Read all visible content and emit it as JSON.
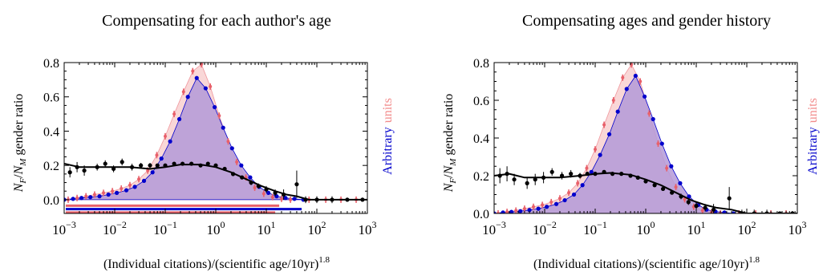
{
  "figure": {
    "panels": [
      {
        "title": "Compensating for each author's age",
        "ylabel": "N_F/N_M gender ratio",
        "ylabel_parts": {
          "N": "N",
          "F": "F",
          "slash": "/",
          "M": "M",
          "rest": " gender ratio"
        },
        "right_label": {
          "blue": "Arbitrary",
          "red": "units"
        },
        "xlabel": {
          "main": "(Individual citations)/(scientific age/10yr)",
          "exponent": "1.8"
        }
      },
      {
        "title": "Compensating ages and gender history",
        "ylabel": "N_F/N_M gender ratio",
        "ylabel_parts": {
          "N": "N",
          "F": "F",
          "slash": "/",
          "M": "M",
          "rest": " gender ratio"
        },
        "right_label": {
          "blue": "Arbitrary",
          "red": "units"
        },
        "xlabel": {
          "main": "(Individual citations)/(scientific age/10yr)",
          "exponent": "1.8"
        }
      }
    ]
  },
  "chart_data": [
    {
      "type": "scatter",
      "title": "Compensating for each author's age",
      "xlabel": "(Individual citations)/(scientific age/10yr)^1.8",
      "ylabel": "N_F/N_M gender ratio",
      "xscale": "log",
      "xlim": [
        0.001,
        1000
      ],
      "ylim": [
        -0.08,
        0.8
      ],
      "yticks": [
        0.0,
        0.2,
        0.4,
        0.6,
        0.8
      ],
      "ytick_labels": [
        "0.0",
        "0.2",
        "0.4",
        "0.6",
        "0.8"
      ],
      "xticks": [
        0.001,
        0.01,
        0.1,
        1,
        10,
        100,
        1000
      ],
      "xtick_labels": [
        {
          "b": "10",
          "e": "−3"
        },
        {
          "b": "10",
          "e": "−2"
        },
        {
          "b": "10",
          "e": "−1"
        },
        {
          "b": "10",
          "e": "0"
        },
        {
          "b": "10",
          "e": "1"
        },
        {
          "b": "10",
          "e": "2"
        },
        {
          "b": "10",
          "e": "3"
        }
      ],
      "grid": false,
      "colors": {
        "ratio": "#000000",
        "blue": "#0000cc",
        "red": "#e8606a",
        "fill": "#b49ad8",
        "red_fill": "#f7c9c9"
      },
      "ratio_points": [
        {
          "x": 0.0013,
          "y": 0.16,
          "err": 0.03
        },
        {
          "x": 0.0018,
          "y": 0.19,
          "err": 0.03
        },
        {
          "x": 0.0025,
          "y": 0.17,
          "err": 0.03
        },
        {
          "x": 0.0045,
          "y": 0.19,
          "err": 0.02
        },
        {
          "x": 0.0065,
          "y": 0.21,
          "err": 0.02
        },
        {
          "x": 0.0095,
          "y": 0.18,
          "err": 0.02
        },
        {
          "x": 0.014,
          "y": 0.22,
          "err": 0.02
        },
        {
          "x": 0.022,
          "y": 0.19,
          "err": 0.02
        },
        {
          "x": 0.033,
          "y": 0.2,
          "err": 0.015
        },
        {
          "x": 0.05,
          "y": 0.2,
          "err": 0.015
        },
        {
          "x": 0.07,
          "y": 0.2,
          "err": 0.01
        },
        {
          "x": 0.1,
          "y": 0.2,
          "err": 0.01
        },
        {
          "x": 0.15,
          "y": 0.21,
          "err": 0.01
        },
        {
          "x": 0.22,
          "y": 0.21,
          "err": 0.01
        },
        {
          "x": 0.33,
          "y": 0.21,
          "err": 0.01
        },
        {
          "x": 0.5,
          "y": 0.2,
          "err": 0.01
        },
        {
          "x": 0.7,
          "y": 0.21,
          "err": 0.01
        },
        {
          "x": 1,
          "y": 0.2,
          "err": 0.01
        },
        {
          "x": 1.5,
          "y": 0.18,
          "err": 0.01
        },
        {
          "x": 2.2,
          "y": 0.15,
          "err": 0.01
        },
        {
          "x": 3.3,
          "y": 0.13,
          "err": 0.01
        },
        {
          "x": 5,
          "y": 0.1,
          "err": 0.015
        },
        {
          "x": 7,
          "y": 0.08,
          "err": 0.015
        },
        {
          "x": 10,
          "y": 0.06,
          "err": 0.02
        },
        {
          "x": 15,
          "y": 0.04,
          "err": 0.02
        },
        {
          "x": 22,
          "y": 0.03,
          "err": 0.03
        },
        {
          "x": 40,
          "y": 0.09,
          "err": 0.08
        },
        {
          "x": 60,
          "y": 0.0,
          "err": 0.02
        },
        {
          "x": 100,
          "y": 0.0,
          "err": 0.02
        },
        {
          "x": 200,
          "y": 0.0,
          "err": 0.02
        },
        {
          "x": 400,
          "y": 0.0,
          "err": 0.01
        },
        {
          "x": 800,
          "y": 0.0,
          "err": 0.01
        }
      ],
      "ratio_line": [
        {
          "x": 0.001,
          "y": 0.21
        },
        {
          "x": 0.002,
          "y": 0.19
        },
        {
          "x": 0.004,
          "y": 0.19
        },
        {
          "x": 0.01,
          "y": 0.19
        },
        {
          "x": 0.02,
          "y": 0.19
        },
        {
          "x": 0.05,
          "y": 0.18
        },
        {
          "x": 0.1,
          "y": 0.19
        },
        {
          "x": 0.2,
          "y": 0.205
        },
        {
          "x": 0.5,
          "y": 0.205
        },
        {
          "x": 1,
          "y": 0.19
        },
        {
          "x": 2,
          "y": 0.16
        },
        {
          "x": 4,
          "y": 0.12
        },
        {
          "x": 8,
          "y": 0.08
        },
        {
          "x": 15,
          "y": 0.05
        },
        {
          "x": 25,
          "y": 0.03
        },
        {
          "x": 40,
          "y": 0.02
        },
        {
          "x": 70,
          "y": 0.0
        },
        {
          "x": 1000,
          "y": 0.0
        }
      ],
      "blue_points": [
        {
          "x": 0.001,
          "y": 0.0
        },
        {
          "x": 0.0015,
          "y": 0.005
        },
        {
          "x": 0.0022,
          "y": 0.01
        },
        {
          "x": 0.0033,
          "y": 0.015
        },
        {
          "x": 0.005,
          "y": 0.02
        },
        {
          "x": 0.0075,
          "y": 0.03
        },
        {
          "x": 0.011,
          "y": 0.04
        },
        {
          "x": 0.017,
          "y": 0.055
        },
        {
          "x": 0.025,
          "y": 0.075
        },
        {
          "x": 0.038,
          "y": 0.11
        },
        {
          "x": 0.056,
          "y": 0.16
        },
        {
          "x": 0.084,
          "y": 0.24
        },
        {
          "x": 0.125,
          "y": 0.34
        },
        {
          "x": 0.19,
          "y": 0.47
        },
        {
          "x": 0.28,
          "y": 0.6
        },
        {
          "x": 0.42,
          "y": 0.71
        },
        {
          "x": 0.63,
          "y": 0.65
        },
        {
          "x": 0.95,
          "y": 0.54
        },
        {
          "x": 1.4,
          "y": 0.42
        },
        {
          "x": 2.1,
          "y": 0.3
        },
        {
          "x": 3.2,
          "y": 0.2
        },
        {
          "x": 4.8,
          "y": 0.13
        },
        {
          "x": 7.2,
          "y": 0.075
        },
        {
          "x": 11,
          "y": 0.04
        },
        {
          "x": 16,
          "y": 0.02
        },
        {
          "x": 24,
          "y": 0.01
        },
        {
          "x": 36,
          "y": 0.005
        },
        {
          "x": 54,
          "y": 0.0
        }
      ],
      "red_points": [
        {
          "x": 0.0012,
          "y": 0.0
        },
        {
          "x": 0.0018,
          "y": 0.01
        },
        {
          "x": 0.0027,
          "y": 0.02
        },
        {
          "x": 0.004,
          "y": 0.03
        },
        {
          "x": 0.006,
          "y": 0.04
        },
        {
          "x": 0.009,
          "y": 0.05
        },
        {
          "x": 0.0135,
          "y": 0.065
        },
        {
          "x": 0.02,
          "y": 0.085
        },
        {
          "x": 0.03,
          "y": 0.12
        },
        {
          "x": 0.045,
          "y": 0.17
        },
        {
          "x": 0.068,
          "y": 0.26
        },
        {
          "x": 0.1,
          "y": 0.37
        },
        {
          "x": 0.15,
          "y": 0.5
        },
        {
          "x": 0.23,
          "y": 0.63
        },
        {
          "x": 0.35,
          "y": 0.75
        },
        {
          "x": 0.52,
          "y": 0.79
        },
        {
          "x": 0.78,
          "y": 0.66
        },
        {
          "x": 1.17,
          "y": 0.49
        },
        {
          "x": 1.76,
          "y": 0.34
        },
        {
          "x": 2.6,
          "y": 0.22
        },
        {
          "x": 3.95,
          "y": 0.13
        },
        {
          "x": 5.9,
          "y": 0.07
        },
        {
          "x": 8.9,
          "y": 0.035
        },
        {
          "x": 13.3,
          "y": 0.015
        },
        {
          "x": 20,
          "y": 0.005
        },
        {
          "x": 30,
          "y": 0.0
        },
        {
          "x": 70,
          "y": 0.0
        },
        {
          "x": 150,
          "y": 0.0
        },
        {
          "x": 300,
          "y": 0.0
        },
        {
          "x": 600,
          "y": 0.0
        }
      ],
      "legend_bars": [
        {
          "color": "#e8606a",
          "y": -0.035,
          "x_end": 18
        },
        {
          "color": "#0000cc",
          "y": -0.055,
          "x_end": 50
        },
        {
          "color": "#e8606a",
          "y": -0.075,
          "x_end": 15
        }
      ]
    },
    {
      "type": "scatter",
      "title": "Compensating ages and gender history",
      "xlabel": "(Individual citations)/(scientific age/10yr)^1.8",
      "ylabel": "N_F/N_M gender ratio",
      "xscale": "log",
      "xlim": [
        0.001,
        1000
      ],
      "ylim": [
        0.0,
        0.8
      ],
      "yticks": [
        0.0,
        0.2,
        0.4,
        0.6,
        0.8
      ],
      "ytick_labels": [
        "0.0",
        "0.2",
        "0.4",
        "0.6",
        "0.8"
      ],
      "xticks": [
        0.001,
        0.01,
        0.1,
        1,
        10,
        100,
        1000
      ],
      "xtick_labels": [
        {
          "b": "10",
          "e": "−3"
        },
        {
          "b": "10",
          "e": "−2"
        },
        {
          "b": "10",
          "e": "−1"
        },
        {
          "b": "10",
          "e": "0"
        },
        {
          "b": "10",
          "e": "1"
        },
        {
          "b": "10",
          "e": "2"
        },
        {
          "b": "10",
          "e": "3"
        }
      ],
      "grid": false,
      "colors": {
        "ratio": "#000000",
        "blue": "#0000cc",
        "red": "#e8606a",
        "fill": "#b49ad8",
        "red_fill": "#f7c9c9"
      },
      "ratio_points": [
        {
          "x": 0.0013,
          "y": 0.2,
          "err": 0.04
        },
        {
          "x": 0.0018,
          "y": 0.21,
          "err": 0.04
        },
        {
          "x": 0.0025,
          "y": 0.18,
          "err": 0.03
        },
        {
          "x": 0.0045,
          "y": 0.16,
          "err": 0.03
        },
        {
          "x": 0.0065,
          "y": 0.18,
          "err": 0.03
        },
        {
          "x": 0.0095,
          "y": 0.19,
          "err": 0.03
        },
        {
          "x": 0.014,
          "y": 0.22,
          "err": 0.02
        },
        {
          "x": 0.022,
          "y": 0.2,
          "err": 0.02
        },
        {
          "x": 0.033,
          "y": 0.21,
          "err": 0.02
        },
        {
          "x": 0.05,
          "y": 0.2,
          "err": 0.015
        },
        {
          "x": 0.07,
          "y": 0.21,
          "err": 0.01
        },
        {
          "x": 0.1,
          "y": 0.21,
          "err": 0.01
        },
        {
          "x": 0.15,
          "y": 0.22,
          "err": 0.01
        },
        {
          "x": 0.22,
          "y": 0.21,
          "err": 0.01
        },
        {
          "x": 0.33,
          "y": 0.21,
          "err": 0.01
        },
        {
          "x": 0.5,
          "y": 0.2,
          "err": 0.01
        },
        {
          "x": 0.7,
          "y": 0.19,
          "err": 0.01
        },
        {
          "x": 1,
          "y": 0.17,
          "err": 0.01
        },
        {
          "x": 1.5,
          "y": 0.15,
          "err": 0.01
        },
        {
          "x": 2.2,
          "y": 0.13,
          "err": 0.01
        },
        {
          "x": 3.3,
          "y": 0.11,
          "err": 0.01
        },
        {
          "x": 5,
          "y": 0.09,
          "err": 0.015
        },
        {
          "x": 7,
          "y": 0.06,
          "err": 0.015
        },
        {
          "x": 10,
          "y": 0.04,
          "err": 0.02
        },
        {
          "x": 15,
          "y": 0.03,
          "err": 0.02
        },
        {
          "x": 22,
          "y": 0.02,
          "err": 0.03
        },
        {
          "x": 45,
          "y": 0.08,
          "err": 0.06
        },
        {
          "x": 80,
          "y": 0.0,
          "err": 0.02
        },
        {
          "x": 140,
          "y": 0.0,
          "err": 0.02
        },
        {
          "x": 250,
          "y": 0.0,
          "err": 0.02
        },
        {
          "x": 450,
          "y": 0.0,
          "err": 0.01
        },
        {
          "x": 800,
          "y": 0.0,
          "err": 0.01
        }
      ],
      "ratio_line": [
        {
          "x": 0.001,
          "y": 0.2
        },
        {
          "x": 0.002,
          "y": 0.21
        },
        {
          "x": 0.004,
          "y": 0.19
        },
        {
          "x": 0.01,
          "y": 0.19
        },
        {
          "x": 0.02,
          "y": 0.19
        },
        {
          "x": 0.05,
          "y": 0.2
        },
        {
          "x": 0.1,
          "y": 0.21
        },
        {
          "x": 0.2,
          "y": 0.215
        },
        {
          "x": 0.5,
          "y": 0.205
        },
        {
          "x": 1,
          "y": 0.18
        },
        {
          "x": 2,
          "y": 0.15
        },
        {
          "x": 4,
          "y": 0.11
        },
        {
          "x": 8,
          "y": 0.07
        },
        {
          "x": 15,
          "y": 0.045
        },
        {
          "x": 25,
          "y": 0.03
        },
        {
          "x": 50,
          "y": 0.02
        },
        {
          "x": 100,
          "y": 0.0
        },
        {
          "x": 1000,
          "y": 0.0
        }
      ],
      "blue_points": [
        {
          "x": 0.001,
          "y": 0.0
        },
        {
          "x": 0.0015,
          "y": 0.005
        },
        {
          "x": 0.0022,
          "y": 0.008
        },
        {
          "x": 0.0033,
          "y": 0.012
        },
        {
          "x": 0.005,
          "y": 0.018
        },
        {
          "x": 0.0075,
          "y": 0.025
        },
        {
          "x": 0.011,
          "y": 0.035
        },
        {
          "x": 0.017,
          "y": 0.05
        },
        {
          "x": 0.025,
          "y": 0.07
        },
        {
          "x": 0.038,
          "y": 0.1
        },
        {
          "x": 0.056,
          "y": 0.15
        },
        {
          "x": 0.084,
          "y": 0.22
        },
        {
          "x": 0.125,
          "y": 0.31
        },
        {
          "x": 0.19,
          "y": 0.42
        },
        {
          "x": 0.28,
          "y": 0.54
        },
        {
          "x": 0.42,
          "y": 0.66
        },
        {
          "x": 0.63,
          "y": 0.73
        },
        {
          "x": 0.95,
          "y": 0.62
        },
        {
          "x": 1.4,
          "y": 0.5
        },
        {
          "x": 2.1,
          "y": 0.37
        },
        {
          "x": 3.2,
          "y": 0.25
        },
        {
          "x": 4.8,
          "y": 0.16
        },
        {
          "x": 7.2,
          "y": 0.09
        },
        {
          "x": 11,
          "y": 0.045
        },
        {
          "x": 16,
          "y": 0.02
        },
        {
          "x": 24,
          "y": 0.01
        },
        {
          "x": 36,
          "y": 0.005
        },
        {
          "x": 54,
          "y": 0.0
        }
      ],
      "red_points": [
        {
          "x": 0.0012,
          "y": 0.0
        },
        {
          "x": 0.0018,
          "y": 0.008
        },
        {
          "x": 0.0027,
          "y": 0.015
        },
        {
          "x": 0.004,
          "y": 0.025
        },
        {
          "x": 0.006,
          "y": 0.035
        },
        {
          "x": 0.009,
          "y": 0.045
        },
        {
          "x": 0.0135,
          "y": 0.06
        },
        {
          "x": 0.02,
          "y": 0.08
        },
        {
          "x": 0.03,
          "y": 0.11
        },
        {
          "x": 0.045,
          "y": 0.16
        },
        {
          "x": 0.068,
          "y": 0.24
        },
        {
          "x": 0.1,
          "y": 0.34
        },
        {
          "x": 0.15,
          "y": 0.47
        },
        {
          "x": 0.23,
          "y": 0.6
        },
        {
          "x": 0.35,
          "y": 0.72
        },
        {
          "x": 0.52,
          "y": 0.79
        },
        {
          "x": 0.78,
          "y": 0.7
        },
        {
          "x": 1.17,
          "y": 0.53
        },
        {
          "x": 1.76,
          "y": 0.37
        },
        {
          "x": 2.6,
          "y": 0.24
        },
        {
          "x": 3.95,
          "y": 0.14
        },
        {
          "x": 5.9,
          "y": 0.075
        },
        {
          "x": 8.9,
          "y": 0.035
        },
        {
          "x": 13.3,
          "y": 0.015
        },
        {
          "x": 20,
          "y": 0.005
        },
        {
          "x": 30,
          "y": 0.0
        },
        {
          "x": 70,
          "y": 0.0
        },
        {
          "x": 150,
          "y": 0.0
        },
        {
          "x": 300,
          "y": 0.0
        },
        {
          "x": 600,
          "y": 0.0
        }
      ],
      "legend_bars": []
    }
  ]
}
